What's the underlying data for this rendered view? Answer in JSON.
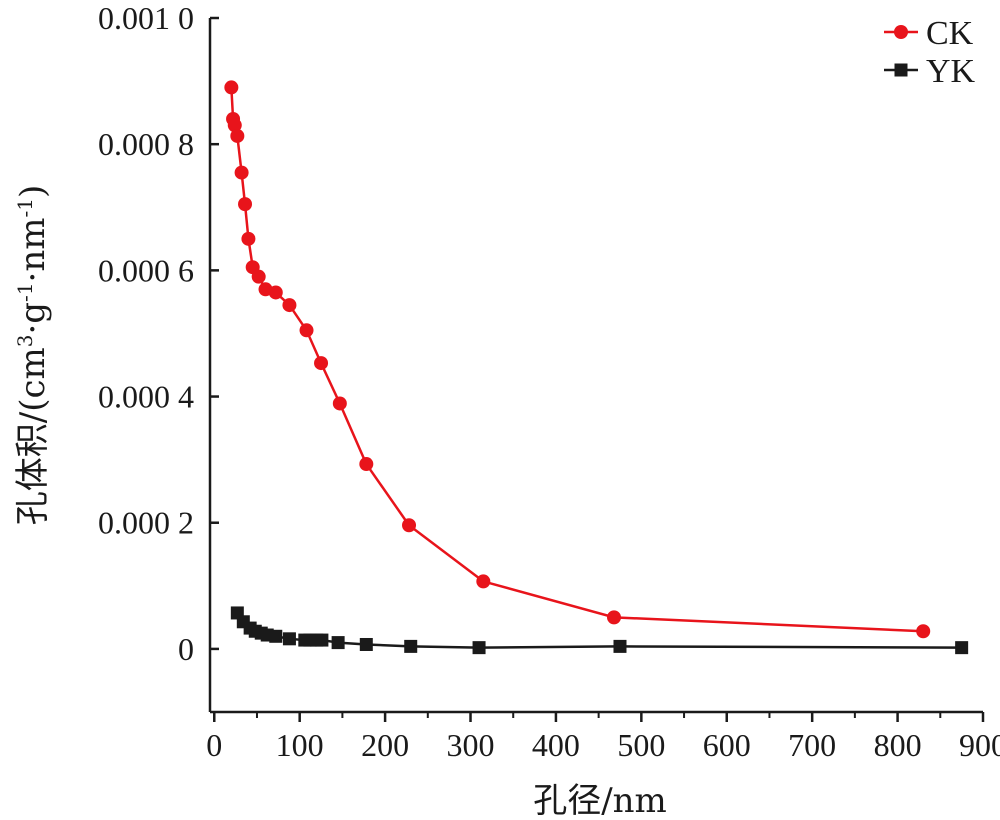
{
  "chart_data": {
    "type": "line",
    "xlabel": "孔径/nm",
    "ylabel": "孔体积/(cm³·g⁻¹·nm⁻¹)",
    "ylabel_parts": {
      "prefix": "孔体积/(cm",
      "sup1": "3",
      "mid1": "·g",
      "sup2": "-1",
      "mid2": "·nm",
      "sup3": "-1",
      "suffix": ")"
    },
    "xlim": [
      -5,
      900
    ],
    "ylim": [
      -0.0001,
      0.001
    ],
    "x_ticks": [
      0,
      100,
      200,
      300,
      400,
      500,
      600,
      700,
      800,
      900
    ],
    "x_tick_labels": [
      "0",
      "100",
      "200",
      "300",
      "400",
      "500",
      "600",
      "700",
      "800",
      "900"
    ],
    "y_ticks": [
      0,
      0.0002,
      0.0004,
      0.0006,
      0.0008,
      0.001
    ],
    "y_tick_labels": [
      "0",
      "0.000 2",
      "0.000 4",
      "0.000 6",
      "0.000 8",
      "0.001 0"
    ],
    "legend_position": "top-right",
    "grid": false,
    "series": [
      {
        "name": "CK",
        "color": "#e8141b",
        "marker": "circle",
        "x": [
          20,
          22,
          24,
          27,
          32,
          36,
          40,
          45,
          52,
          60,
          72,
          88,
          108,
          125,
          147,
          178,
          228,
          315,
          468,
          830
        ],
        "y": [
          0.00089,
          0.00084,
          0.00083,
          0.000813,
          0.000755,
          0.000705,
          0.00065,
          0.000605,
          0.00059,
          0.00057,
          0.000565,
          0.000545,
          0.000505,
          0.000453,
          0.000389,
          0.000293,
          0.000196,
          0.000107,
          5e-05,
          2.8e-05
        ]
      },
      {
        "name": "YK",
        "color": "#1a1a1a",
        "marker": "square",
        "x": [
          27,
          34,
          42,
          48,
          55,
          62,
          72,
          88,
          106,
          112,
          120,
          126,
          145,
          178,
          230,
          310,
          475,
          875
        ],
        "y": [
          5.7e-05,
          4.3e-05,
          3.3e-05,
          2.8e-05,
          2.5e-05,
          2.2e-05,
          2e-05,
          1.6e-05,
          1.4e-05,
          1.4e-05,
          1.4e-05,
          1.4e-05,
          1e-05,
          7e-06,
          4e-06,
          2e-06,
          4e-06,
          2e-06
        ]
      }
    ]
  }
}
